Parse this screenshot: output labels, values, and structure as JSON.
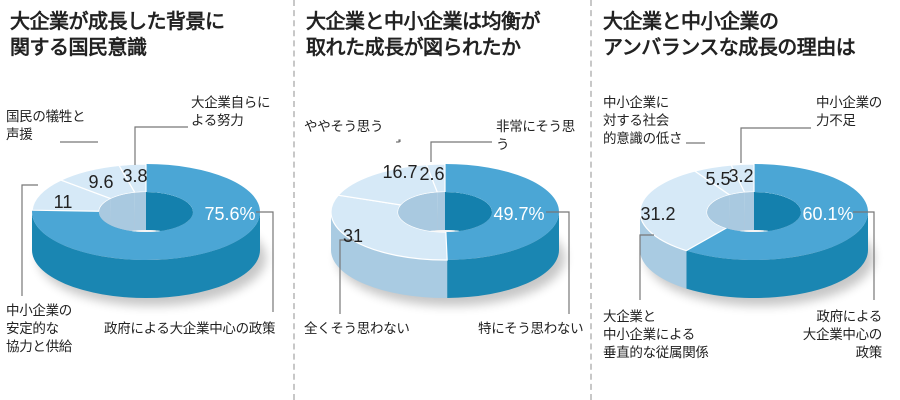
{
  "colors": {
    "main_top": "#4ba6d5",
    "main_side": "#1a86b2",
    "main_inner": "#1480ad",
    "minor_top": "#d6e9f7",
    "minor_side": "#a9cbe2",
    "minor_inner": "#a9c9e0",
    "divider": "#c8c8c8",
    "leader": "#777777"
  },
  "panels": [
    {
      "title": "大企業が成長した背景に\n関する国民意識",
      "labels": {
        "s0": "政府による大企業中心の政策",
        "s1": "中小企業の\n安定的な\n協力と供給",
        "s2": "国民の犠牲と\n声援",
        "s3": "大企業自らに\nよる努力"
      },
      "values": {
        "s0": "75.6%",
        "s1": "11",
        "s2": "9.6",
        "s3": "3.8"
      }
    },
    {
      "title": "大企業と中小企業は均衡が\n取れた成長が図られたか",
      "labels": {
        "s0": "特にそう思わない",
        "s1": "全くそう思わない",
        "s2": "ややそう思う",
        "s3": "非常にそう思う"
      },
      "values": {
        "s0": "49.7%",
        "s1": "31",
        "s2": "16.7",
        "s3": "2.6"
      }
    },
    {
      "title": "大企業と中小企業の\nアンバランスな成長の理由は",
      "labels": {
        "s0": "政府による\n大企業中心の\n政策",
        "s1": "大企業と\n中小企業による\n垂直的な従属関係",
        "s2": "中小企業に\n対する社会\n的意識の低さ",
        "s3": "中小企業の\n力不足"
      },
      "values": {
        "s0": "60.1%",
        "s1": "31.2",
        "s2": "5.5",
        "s3": "3.2"
      }
    }
  ],
  "chart_data": [
    {
      "type": "pie",
      "subtype": "3d-donut",
      "title": "大企業が成長した背景に関する国民意識",
      "unit": "%",
      "categories": [
        "政府による大企業中心の政策",
        "中小企業の安定的な協力と供給",
        "国民の犠牲と声援",
        "大企業自らによる努力"
      ],
      "values": [
        75.6,
        11,
        9.6,
        3.8
      ]
    },
    {
      "type": "pie",
      "subtype": "3d-donut",
      "title": "大企業と中小企業は均衡が取れた成長が図られたか",
      "unit": "%",
      "categories": [
        "特にそう思わない",
        "全くそう思わない",
        "ややそう思う",
        "非常にそう思う"
      ],
      "values": [
        49.7,
        31,
        16.7,
        2.6
      ]
    },
    {
      "type": "pie",
      "subtype": "3d-donut",
      "title": "大企業と中小企業のアンバランスな成長の理由は",
      "unit": "%",
      "categories": [
        "政府による大企業中心の政策",
        "大企業と中小企業による垂直的な従属関係",
        "中小企業に対する社会的意識の低さ",
        "中小企業の力不足"
      ],
      "values": [
        60.1,
        31.2,
        5.5,
        3.2
      ]
    }
  ]
}
